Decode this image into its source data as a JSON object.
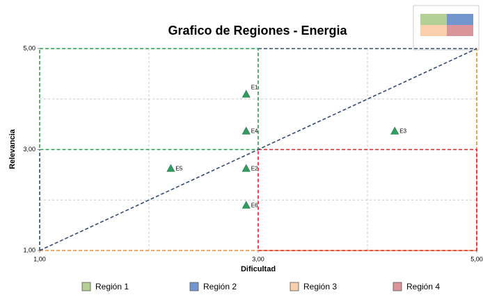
{
  "chart_data": {
    "type": "scatter",
    "title": "Grafico de Regiones - Energia",
    "x_label": "Dificultad",
    "y_label": "Relevancia",
    "x": [
      2.89,
      2.89,
      4.25,
      2.2,
      2.89,
      2.89
    ],
    "values": [
      4.09,
      3.36,
      3.36,
      2.62,
      2.62,
      1.89
    ],
    "point_labels": [
      "E1",
      "E4",
      "E3",
      "E5",
      "E2",
      "E6"
    ],
    "color": "#2e9e5e",
    "xlim": [
      1,
      5
    ],
    "ylim": [
      1,
      5
    ],
    "xticks": [
      {
        "value": 1,
        "label": "1,00"
      },
      {
        "value": 3,
        "label": "3,00"
      },
      {
        "value": 5,
        "label": "5,00"
      }
    ],
    "yticks": [
      {
        "value": 1,
        "label": "1,00"
      },
      {
        "value": 3,
        "label": "3,00"
      },
      {
        "value": 5,
        "label": "5,00"
      }
    ],
    "xgrid": [
      2,
      4
    ],
    "ygrid": [
      2,
      4
    ],
    "legend": [
      {
        "name": "Región 1",
        "color": "#b3cf94"
      },
      {
        "name": "Región 2",
        "color": "#7396cf"
      },
      {
        "name": "Región 3",
        "color": "#f9cfac"
      },
      {
        "name": "Región 4",
        "color": "#d9959a"
      }
    ]
  }
}
